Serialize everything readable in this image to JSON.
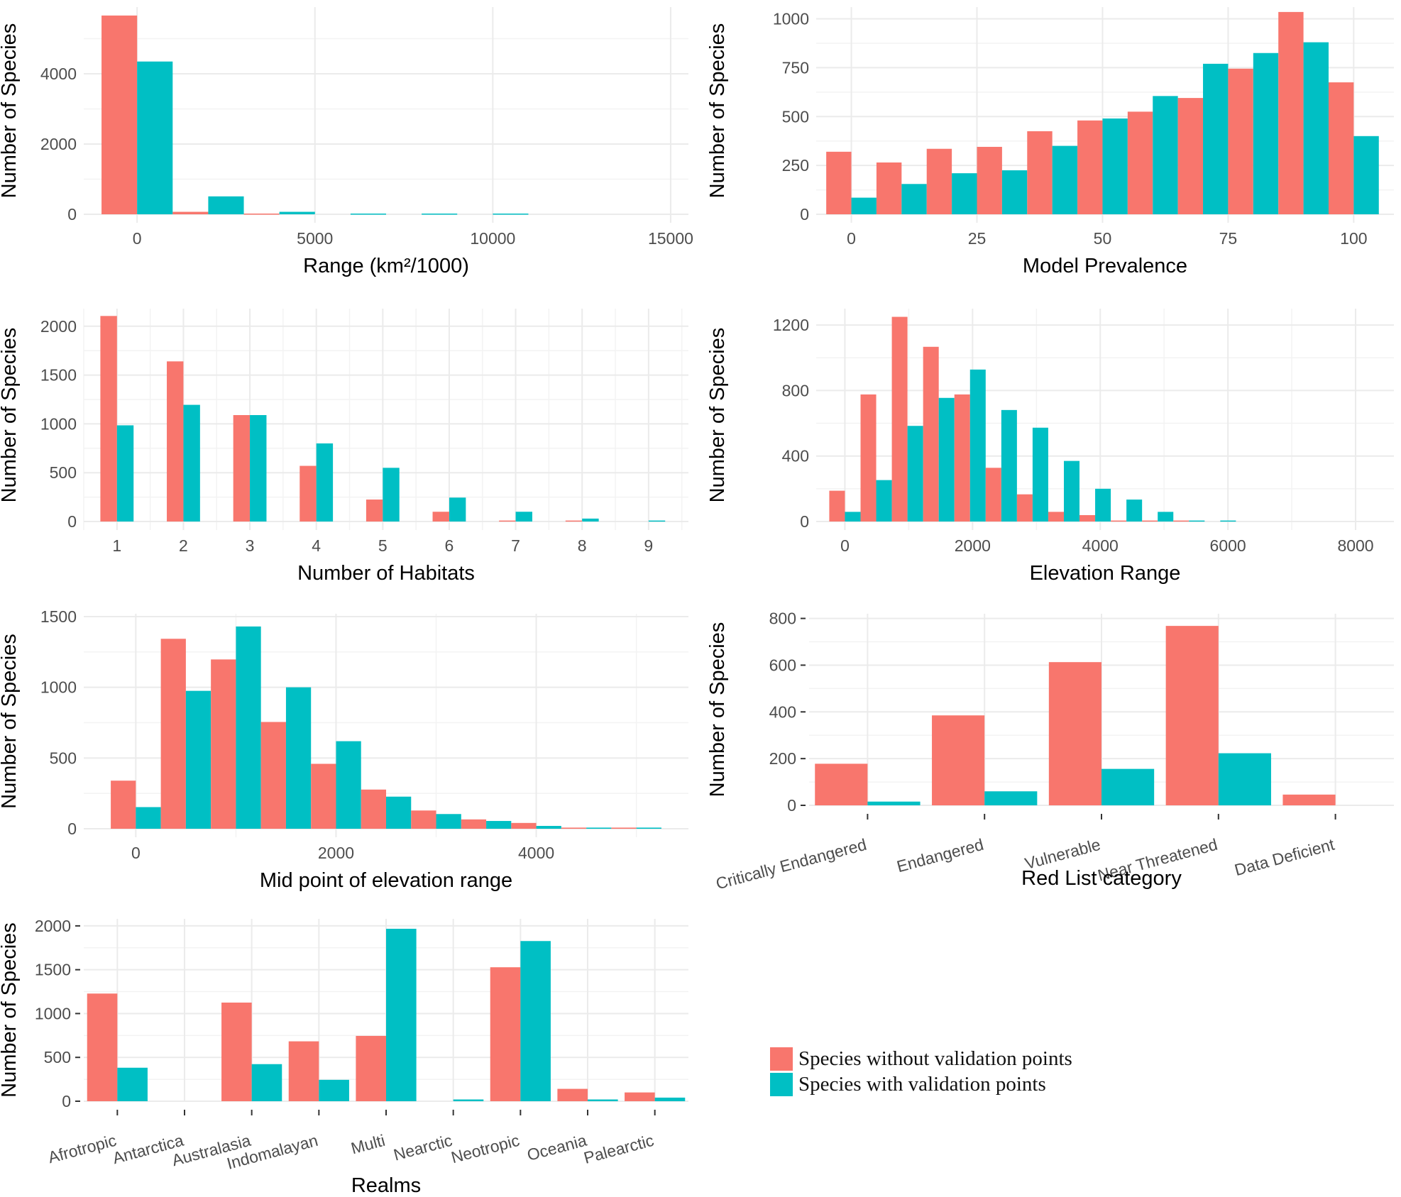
{
  "colors": {
    "without": "#F8766D",
    "with": "#00BFC4"
  },
  "legend": {
    "items": [
      {
        "label": "Species without validation points",
        "series": "without"
      },
      {
        "label": "Species with validation points",
        "series": "with"
      }
    ]
  },
  "chart_data": [
    {
      "id": "range",
      "type": "bar",
      "title": "",
      "xlabel": "Range (km²/1000)",
      "ylabel": "Number of Species",
      "x_kind": "numeric",
      "bin_width": 2000,
      "x": [
        0,
        2000,
        4000,
        6000,
        8000,
        10000
      ],
      "xlim": [
        -1500,
        15500
      ],
      "x_ticks": [
        0,
        5000,
        10000,
        15000
      ],
      "x_tick_labels": [
        "0",
        "5000",
        "10000",
        "15000"
      ],
      "ylim": [
        0,
        5900
      ],
      "y_ticks": [
        0,
        2000,
        4000
      ],
      "y_minor": [
        1000,
        3000,
        5000
      ],
      "series": [
        {
          "name": "Species without validation points",
          "key": "without",
          "values": [
            5660,
            70,
            20,
            0,
            0,
            0
          ]
        },
        {
          "name": "Species with validation points",
          "key": "with",
          "values": [
            4350,
            510,
            70,
            20,
            20,
            20
          ]
        }
      ],
      "grid": true
    },
    {
      "id": "prevalence",
      "type": "bar",
      "xlabel": "Model Prevalence",
      "ylabel": "Number of Species",
      "x_kind": "numeric",
      "bin_width": 10,
      "x": [
        0,
        10,
        20,
        30,
        40,
        50,
        60,
        70,
        80,
        90,
        100
      ],
      "xlim": [
        -7,
        108
      ],
      "x_ticks": [
        0,
        25,
        50,
        75,
        100
      ],
      "x_tick_labels": [
        "0",
        "25",
        "50",
        "75",
        "100"
      ],
      "ylim": [
        0,
        1060
      ],
      "y_ticks": [
        0,
        250,
        500,
        750,
        1000
      ],
      "y_minor": [
        125,
        375,
        625,
        875
      ],
      "series": [
        {
          "name": "Species without validation points",
          "key": "without",
          "values": [
            320,
            265,
            335,
            345,
            425,
            480,
            525,
            595,
            745,
            1035,
            675
          ]
        },
        {
          "name": "Species with validation points",
          "key": "with",
          "values": [
            85,
            155,
            210,
            225,
            350,
            490,
            605,
            770,
            825,
            880,
            400
          ]
        }
      ],
      "grid": true
    },
    {
      "id": "habitats",
      "type": "bar",
      "xlabel": "Number of Habitats",
      "ylabel": "Number of Species",
      "x_kind": "numeric",
      "bin_width": 0.5,
      "x": [
        1,
        2,
        3,
        4,
        5,
        6,
        7,
        8,
        9
      ],
      "xlim": [
        0.5,
        9.6
      ],
      "x_ticks": [
        1,
        2,
        3,
        4,
        5,
        6,
        7,
        8,
        9
      ],
      "x_tick_labels": [
        "1",
        "2",
        "3",
        "4",
        "5",
        "6",
        "7",
        "8",
        "9"
      ],
      "x_minor": [
        1.5,
        2.5,
        3.5,
        4.5,
        5.5,
        6.5,
        7.5,
        8.5,
        9.5,
        0.5
      ],
      "ylim": [
        0,
        2180
      ],
      "y_ticks": [
        0,
        500,
        1000,
        1500,
        2000
      ],
      "y_minor": [
        250,
        750,
        1250,
        1750
      ],
      "series": [
        {
          "name": "Species without validation points",
          "key": "without",
          "values": [
            2105,
            1640,
            1090,
            570,
            225,
            100,
            10,
            10,
            0
          ]
        },
        {
          "name": "Species with validation points",
          "key": "with",
          "values": [
            985,
            1195,
            1090,
            800,
            550,
            245,
            100,
            30,
            10
          ]
        }
      ],
      "grid": true
    },
    {
      "id": "elevation",
      "type": "bar",
      "xlabel": "Elevation Range",
      "ylabel": "Number of Species",
      "x_kind": "numeric",
      "bin_width": 490,
      "x": [
        0,
        490,
        980,
        1470,
        1960,
        2450,
        2940,
        3430,
        3920,
        4410,
        4900,
        5390,
        5880
      ],
      "xlim": [
        -450,
        8600
      ],
      "x_ticks": [
        0,
        2000,
        4000,
        6000,
        8000
      ],
      "x_tick_labels": [
        "0",
        "2000",
        "4000",
        "6000",
        "8000"
      ],
      "x_minor": [
        1000,
        3000,
        5000,
        7000
      ],
      "ylim": [
        0,
        1300
      ],
      "y_ticks": [
        0,
        400,
        800,
        1200
      ],
      "y_minor": [
        200,
        600,
        1000
      ],
      "series": [
        {
          "name": "Species without validation points",
          "key": "without",
          "values": [
            188,
            776,
            1250,
            1067,
            776,
            328,
            166,
            59,
            39,
            6,
            6,
            6,
            0
          ]
        },
        {
          "name": "Species with validation points",
          "key": "with",
          "values": [
            59,
            253,
            584,
            755,
            928,
            681,
            573,
            370,
            200,
            134,
            59,
            6,
            6
          ]
        }
      ],
      "grid": true
    },
    {
      "id": "midpoint",
      "type": "bar",
      "xlabel": "Mid point of elevation range",
      "ylabel": "Number of Species",
      "x_kind": "numeric",
      "bin_width": 500,
      "x": [
        0,
        500,
        1000,
        1500,
        2000,
        2500,
        3000,
        3500,
        4000,
        4500,
        5000
      ],
      "xlim": [
        -520,
        5520
      ],
      "x_ticks": [
        0,
        2000,
        4000
      ],
      "x_tick_labels": [
        "0",
        "2000",
        "4000"
      ],
      "x_minor": [
        1000,
        3000,
        5000
      ],
      "ylim": [
        0,
        1520
      ],
      "y_ticks": [
        0,
        500,
        1000,
        1500
      ],
      "y_minor": [
        250,
        750,
        1250
      ],
      "series": [
        {
          "name": "Species without validation points",
          "key": "without",
          "values": [
            340,
            1343,
            1197,
            755,
            459,
            277,
            129,
            66,
            41,
            8,
            8
          ]
        },
        {
          "name": "Species with validation points",
          "key": "with",
          "values": [
            153,
            975,
            1430,
            1000,
            619,
            227,
            104,
            55,
            20,
            8,
            8
          ]
        }
      ],
      "grid": true
    },
    {
      "id": "redlist",
      "type": "bar",
      "xlabel": "Red List category",
      "ylabel": "Number of Species",
      "x_kind": "categorical",
      "categories": [
        "Critically Endangered",
        "Endangered",
        "Vulnerable",
        "Near Threatened",
        "Data Deficient"
      ],
      "ylim": [
        0,
        820
      ],
      "y_ticks": [
        0,
        200,
        400,
        600,
        800
      ],
      "y_minor": [
        100,
        300,
        500,
        700
      ],
      "series": [
        {
          "name": "Species without validation points",
          "key": "without",
          "values": [
            178,
            385,
            613,
            768,
            46
          ]
        },
        {
          "name": "Species with validation points",
          "key": "with",
          "values": [
            16,
            60,
            156,
            223,
            0
          ]
        }
      ],
      "grid": true
    },
    {
      "id": "realms",
      "type": "bar",
      "xlabel": "Realms",
      "ylabel": "Number of Species",
      "x_kind": "categorical",
      "categories": [
        "Afrotropic",
        "Antarctica",
        "Australasia",
        "Indomalayan",
        "Multi",
        "Nearctic",
        "Neotropic",
        "Oceania",
        "Palearctic"
      ],
      "ylim": [
        0,
        2080
      ],
      "y_ticks": [
        0,
        500,
        1000,
        1500,
        2000
      ],
      "y_minor": [
        250,
        750,
        1250,
        1750
      ],
      "series": [
        {
          "name": "Species without validation points",
          "key": "without",
          "values": [
            1228,
            0,
            1125,
            683,
            745,
            0,
            1528,
            141,
            100
          ]
        },
        {
          "name": "Species with validation points",
          "key": "with",
          "values": [
            382,
            0,
            423,
            244,
            1967,
            20,
            1827,
            20,
            41
          ]
        }
      ],
      "grid": true
    }
  ]
}
